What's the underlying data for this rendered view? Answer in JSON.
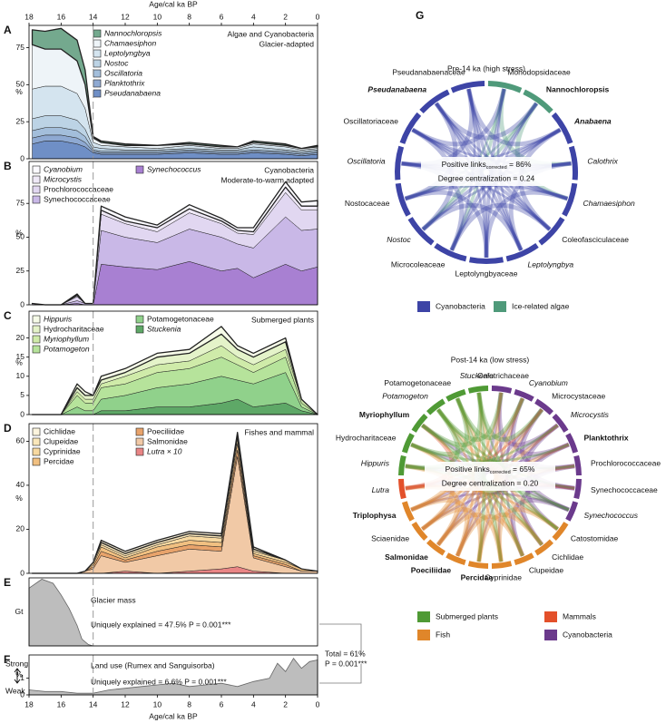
{
  "chart_data": [
    {
      "type": "stacked-area",
      "label": "A",
      "title": [
        "Algae and Cyanobacteria",
        "Glacier-adapted"
      ],
      "ylabel": "%",
      "xlabel": "Age/cal ka BP",
      "xlim": [
        18,
        0
      ],
      "xticks": [
        18,
        16,
        14,
        12,
        10,
        8,
        6,
        4,
        2,
        0
      ],
      "vline": 14,
      "ylim": [
        0,
        90
      ],
      "yticks": [
        0,
        25,
        50,
        75
      ],
      "x": [
        17.8,
        17,
        16,
        15,
        14.5,
        14,
        13.5,
        12,
        10,
        8,
        6,
        5,
        4,
        2,
        1,
        0
      ],
      "series": [
        {
          "name": "Nannochloropsis",
          "italic": true,
          "color": "#74a98e",
          "values": [
            10,
            12,
            14,
            14,
            10,
            1,
            1,
            1,
            0,
            1,
            1,
            0,
            1,
            1,
            0,
            1
          ]
        },
        {
          "name": "Chamaesiphon",
          "italic": true,
          "color": "#eef4f8",
          "values": [
            30,
            25,
            25,
            22,
            16,
            3,
            2,
            1,
            2,
            1,
            1,
            1,
            1,
            1,
            1,
            1
          ]
        },
        {
          "name": "Leptolyngbya",
          "italic": true,
          "color": "#d4e4ef",
          "values": [
            20,
            20,
            20,
            18,
            14,
            3,
            2,
            2,
            1,
            2,
            1,
            1,
            2,
            2,
            1,
            1
          ]
        },
        {
          "name": "Nostoc",
          "italic": true,
          "color": "#bcd3e5",
          "values": [
            8,
            8,
            8,
            7,
            5,
            2,
            2,
            1,
            1,
            1,
            1,
            1,
            2,
            1,
            1,
            1
          ]
        },
        {
          "name": "Oscillatoria",
          "italic": true,
          "color": "#a3bedb",
          "values": [
            5,
            5,
            5,
            5,
            4,
            1,
            1,
            1,
            1,
            1,
            1,
            1,
            1,
            1,
            1,
            1
          ]
        },
        {
          "name": "Planktothrix",
          "italic": true,
          "color": "#8ea9d2",
          "values": [
            4,
            4,
            4,
            4,
            3,
            1,
            1,
            1,
            1,
            1,
            1,
            1,
            1,
            1,
            1,
            1
          ]
        },
        {
          "name": "Pseudanabaena",
          "italic": true,
          "color": "#6f8fc6",
          "values": [
            10,
            12,
            12,
            10,
            8,
            4,
            3,
            3,
            3,
            4,
            3,
            3,
            4,
            3,
            2,
            3
          ]
        }
      ]
    },
    {
      "type": "stacked-area",
      "label": "B",
      "title": [
        "Cyanobacteria",
        "Moderate-to-warm adapted"
      ],
      "ylabel": "%",
      "vline": 14,
      "ylim": [
        0,
        106
      ],
      "yticks": [
        0,
        25,
        50,
        75
      ],
      "x": [
        17.8,
        17,
        16,
        15,
        14.5,
        14,
        13.5,
        12,
        10,
        8,
        6,
        5,
        4,
        2,
        1,
        0
      ],
      "series": [
        {
          "name": "Cyanobium",
          "italic": true,
          "color": "#fbfaff",
          "values": [
            0,
            0,
            0,
            1,
            0,
            0,
            3,
            3,
            2,
            3,
            2,
            2,
            3,
            4,
            3,
            4
          ]
        },
        {
          "name": "Microcystis",
          "italic": true,
          "color": "#efe9f7",
          "values": [
            0,
            0,
            0,
            1,
            0,
            0,
            3,
            2,
            3,
            3,
            2,
            2,
            2,
            4,
            3,
            3
          ]
        },
        {
          "name": "Prochlorococcaceae",
          "italic": false,
          "color": "#e1d7f1",
          "values": [
            0,
            0,
            0,
            3,
            0,
            0,
            12,
            10,
            8,
            12,
            10,
            8,
            10,
            18,
            15,
            14
          ]
        },
        {
          "name": "Synechococcaceae",
          "italic": false,
          "color": "#c9b8e7",
          "values": [
            1,
            0,
            0,
            2,
            1,
            1,
            25,
            22,
            20,
            24,
            25,
            18,
            22,
            35,
            30,
            28
          ]
        },
        {
          "name": "Synechococcus",
          "italic": true,
          "color": "#a880d2",
          "values": [
            0,
            0,
            0,
            1,
            0,
            0,
            30,
            28,
            26,
            32,
            25,
            27,
            20,
            30,
            25,
            28
          ]
        }
      ]
    },
    {
      "type": "stacked-area",
      "label": "C",
      "title": [
        "Submerged plants"
      ],
      "ylabel": "%",
      "vline": 14,
      "ylim": [
        0,
        27
      ],
      "yticks": [
        0,
        5,
        10,
        15,
        20
      ],
      "x": [
        17.8,
        17,
        16,
        15,
        14.5,
        14,
        13.5,
        12,
        10,
        8,
        6,
        5,
        4,
        2,
        1,
        0
      ],
      "series": [
        {
          "name": "Hippuris",
          "italic": true,
          "color": "#f6fbe8",
          "values": [
            0,
            0,
            0,
            1,
            1,
            0,
            1,
            1,
            1,
            1,
            2,
            1,
            1,
            1,
            0,
            0
          ]
        },
        {
          "name": "Hydrocharitaceae",
          "italic": false,
          "color": "#e4f3c9",
          "values": [
            0,
            0,
            0,
            1,
            1,
            1,
            1,
            1,
            2,
            2,
            3,
            2,
            2,
            2,
            0,
            0
          ]
        },
        {
          "name": "Myriophyllum",
          "italic": true,
          "color": "#cfeba9",
          "values": [
            0,
            0,
            0,
            1,
            1,
            1,
            1,
            2,
            2,
            2,
            3,
            2,
            2,
            2,
            1,
            0
          ]
        },
        {
          "name": "Potamogeton",
          "italic": true,
          "color": "#b6e39b",
          "values": [
            0,
            0,
            0,
            3,
            2,
            2,
            3,
            3,
            4,
            4,
            5,
            4,
            3,
            4,
            1,
            0
          ]
        },
        {
          "name": "Potamogetonaceae",
          "italic": false,
          "color": "#90d18b",
          "values": [
            0,
            0,
            0,
            2,
            1,
            1,
            3,
            4,
            5,
            6,
            7,
            5,
            6,
            8,
            1,
            0
          ]
        },
        {
          "name": "Stuckenia",
          "italic": true,
          "color": "#5ea867",
          "values": [
            0,
            0,
            0,
            0,
            0,
            0,
            1,
            1,
            2,
            2,
            3,
            4,
            2,
            3,
            1,
            0
          ]
        }
      ]
    },
    {
      "type": "stacked-area",
      "label": "D",
      "title": [
        "Fishes and mammal"
      ],
      "ylabel": "%",
      "vline": 14,
      "ylim": [
        0,
        68
      ],
      "yticks": [
        0,
        20,
        40,
        60
      ],
      "x": [
        17.8,
        17,
        16,
        15,
        14.5,
        14,
        13.5,
        12,
        10,
        8,
        6,
        5,
        4,
        2,
        1,
        0
      ],
      "series": [
        {
          "name": "Cichlidae",
          "italic": false,
          "color": "#fdf5de",
          "values": [
            0,
            0,
            0,
            0,
            0,
            0,
            1,
            1,
            1,
            1,
            1,
            1,
            1,
            0,
            0,
            0
          ]
        },
        {
          "name": "Clupeidae",
          "italic": false,
          "color": "#fae7ba",
          "values": [
            0,
            0,
            0,
            0,
            0,
            0,
            1,
            1,
            1,
            1,
            1,
            2,
            1,
            0,
            0,
            0
          ]
        },
        {
          "name": "Cyprinidae",
          "italic": false,
          "color": "#f7d9a1",
          "values": [
            0,
            0,
            0,
            0,
            0,
            1,
            1,
            1,
            1,
            2,
            2,
            2,
            1,
            1,
            0,
            0
          ]
        },
        {
          "name": "Percidae",
          "italic": false,
          "color": "#f1c081",
          "values": [
            0,
            0,
            0,
            0,
            0,
            1,
            2,
            1,
            2,
            2,
            2,
            3,
            1,
            1,
            1,
            0
          ]
        },
        {
          "name": "Poeciliidae",
          "italic": false,
          "color": "#e8a36b",
          "values": [
            0,
            0,
            0,
            0,
            0,
            1,
            2,
            1,
            2,
            2,
            2,
            3,
            1,
            1,
            0,
            0
          ]
        },
        {
          "name": "Salmonidae",
          "italic": false,
          "color": "#f1c9a6",
          "values": [
            0,
            0,
            0,
            0,
            1,
            2,
            8,
            4,
            8,
            10,
            8,
            50,
            6,
            3,
            1,
            1
          ]
        },
        {
          "name": "Lutra × 10",
          "italic": true,
          "color": "#e98585",
          "values": [
            0,
            0,
            0,
            0,
            0,
            0,
            0,
            1,
            0,
            1,
            2,
            3,
            1,
            0,
            0,
            0
          ]
        }
      ]
    },
    {
      "type": "area",
      "label": "E",
      "title": [
        "Glacier mass"
      ],
      "ylabel": "Gt",
      "vline": 14,
      "color": "#bdbdbd",
      "note": "Uniquely explained = 47.5% P = 0.001***",
      "ylim": [
        0,
        100
      ],
      "yticks": [],
      "x": [
        18,
        17.2,
        16.5,
        16,
        15.5,
        15,
        14.7,
        14.3,
        14,
        0
      ],
      "values": [
        85,
        98,
        92,
        75,
        55,
        30,
        10,
        2,
        0,
        0
      ]
    },
    {
      "type": "area",
      "label": "F",
      "title": [
        "Land use (Rumex and Sanguisorba)"
      ],
      "ylabel": "%",
      "vline": 14,
      "color": "#bdbdbd",
      "note": "Uniquely explained = 6.6% P = 0.001***",
      "scale_top": "Strong",
      "scale_bottom": "Weak",
      "total": [
        "Total = 61%",
        "P = 0.001***"
      ],
      "xlabel": "Age/cal ka BP",
      "xlim": [
        18,
        0
      ],
      "xticks": [
        18,
        16,
        14,
        12,
        10,
        8,
        6,
        4,
        2,
        0
      ],
      "ylim": [
        0,
        2.4
      ],
      "yticks": [
        0,
        1
      ],
      "x": [
        18,
        17,
        16,
        15,
        14,
        13,
        12,
        11,
        10,
        9,
        8,
        7,
        6,
        5,
        4,
        3,
        2.5,
        2,
        1.5,
        1,
        0.5,
        0
      ],
      "values": [
        0.3,
        0.2,
        0.2,
        0.1,
        0.1,
        0.3,
        0.4,
        0.5,
        0.6,
        0.7,
        0.5,
        0.6,
        0.7,
        0.5,
        0.8,
        1.0,
        1.9,
        1.4,
        2.2,
        1.6,
        2.0,
        2.1
      ]
    },
    {
      "type": "chord",
      "label": "G",
      "title": "Pre-14 ka (high stress)",
      "links": {
        "text": "Positive links",
        "subscript": "corrected",
        "value": " = 86%"
      },
      "centralization": "Degree centralization = 0.24",
      "groups": [
        {
          "name": "Cyanobacteria",
          "color": "#3d44a6"
        },
        {
          "name": "Ice-related algae",
          "color": "#4f9a7a"
        }
      ],
      "nodes": [
        {
          "label": "Monodopsidaceae",
          "group": 1
        },
        {
          "label": "Nannochloropsis",
          "group": 1,
          "bold": true
        },
        {
          "label": "Anabaena",
          "group": 0,
          "bold": true,
          "italic": true
        },
        {
          "label": "Calothrix",
          "group": 0,
          "italic": true
        },
        {
          "label": "Chamaesiphon",
          "group": 0,
          "italic": true
        },
        {
          "label": "Coleofasciculaceae",
          "group": 0
        },
        {
          "label": "Leptolyngbya",
          "group": 0,
          "italic": true
        },
        {
          "label": "Leptolyngbyaceae",
          "group": 0
        },
        {
          "label": "Microcoleaceae",
          "group": 0
        },
        {
          "label": "Nostoc",
          "group": 0,
          "italic": true
        },
        {
          "label": "Nostocaceae",
          "group": 0
        },
        {
          "label": "Oscillatoria",
          "group": 0,
          "italic": true
        },
        {
          "label": "Oscillatoriaceae",
          "group": 0
        },
        {
          "label": "Pseudanabaena",
          "group": 0,
          "bold": true,
          "italic": true
        },
        {
          "label": "Pseudanabaenaceae",
          "group": 0
        }
      ]
    },
    {
      "type": "chord",
      "title": "Post-14 ka (low stress)",
      "links": {
        "text": "Positive links",
        "subscript": "corrected",
        "value": " = 65%"
      },
      "centralization": "Degree centralization = 0.20",
      "groups": [
        {
          "name": "Submerged plants",
          "color": "#4f9a35"
        },
        {
          "name": "Fish",
          "color": "#e0862a"
        },
        {
          "name": "Mammals",
          "color": "#e3502a"
        },
        {
          "name": "Cyanobacteria",
          "color": "#6b3a8c"
        }
      ],
      "nodes": [
        {
          "label": "Calotrichaceae",
          "group": 3
        },
        {
          "label": "Cyanobium",
          "group": 3,
          "italic": true
        },
        {
          "label": "Microcystaceae",
          "group": 3
        },
        {
          "label": "Microcystis",
          "group": 3,
          "italic": true
        },
        {
          "label": "Planktothrix",
          "group": 3,
          "bold": true
        },
        {
          "label": "Prochlorococcaceae",
          "group": 3
        },
        {
          "label": "Synechococcaceae",
          "group": 3
        },
        {
          "label": "Synechococcus",
          "group": 3,
          "italic": true
        },
        {
          "label": "Catostomidae",
          "group": 1
        },
        {
          "label": "Cichlidae",
          "group": 1
        },
        {
          "label": "Clupeidae",
          "group": 1
        },
        {
          "label": "Cyprinidae",
          "group": 1
        },
        {
          "label": "Percidae",
          "group": 1,
          "bold": true
        },
        {
          "label": "Poeciliidae",
          "group": 1,
          "bold": true
        },
        {
          "label": "Salmonidae",
          "group": 1,
          "bold": true
        },
        {
          "label": "Sciaenidae",
          "group": 1
        },
        {
          "label": "Triplophysa",
          "group": 1,
          "bold": true
        },
        {
          "label": "Lutra",
          "group": 2,
          "italic": true
        },
        {
          "label": "Hippuris",
          "group": 0,
          "italic": true
        },
        {
          "label": "Hydrocharitaceae",
          "group": 0
        },
        {
          "label": "Myriophyllum",
          "group": 0,
          "bold": true
        },
        {
          "label": "Potamogeton",
          "group": 0,
          "italic": true
        },
        {
          "label": "Potamogetonaceae",
          "group": 0
        },
        {
          "label": "Stuckenia",
          "group": 0,
          "italic": true
        }
      ]
    }
  ]
}
